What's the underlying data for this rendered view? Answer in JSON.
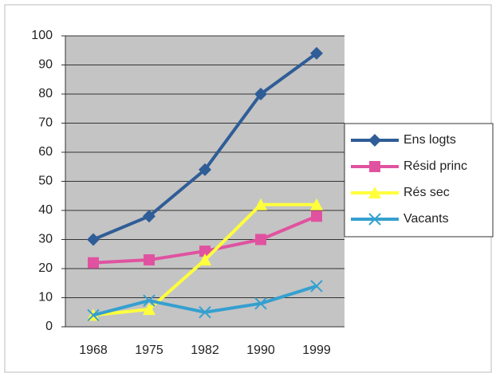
{
  "chart_data": {
    "type": "line",
    "categories": [
      "1968",
      "1975",
      "1982",
      "1990",
      "1999"
    ],
    "series": [
      {
        "name": "Ens logts",
        "color": "#2f5d97",
        "marker": "diamond",
        "values": [
          30,
          38,
          54,
          80,
          94
        ]
      },
      {
        "name": "Résid princ",
        "color": "#e052a0",
        "marker": "square",
        "values": [
          22,
          23,
          26,
          30,
          38
        ]
      },
      {
        "name": "Rés sec",
        "color": "#ffff3c",
        "marker": "triangle",
        "values": [
          4,
          6,
          23,
          42,
          42
        ]
      },
      {
        "name": "Vacants",
        "color": "#35a0cf",
        "marker": "x",
        "values": [
          4,
          9,
          5,
          8,
          14
        ]
      }
    ],
    "ylim": [
      0,
      100
    ],
    "yticks": [
      0,
      10,
      20,
      30,
      40,
      50,
      60,
      70,
      80,
      90,
      100
    ],
    "grid": true,
    "legend": "right"
  }
}
